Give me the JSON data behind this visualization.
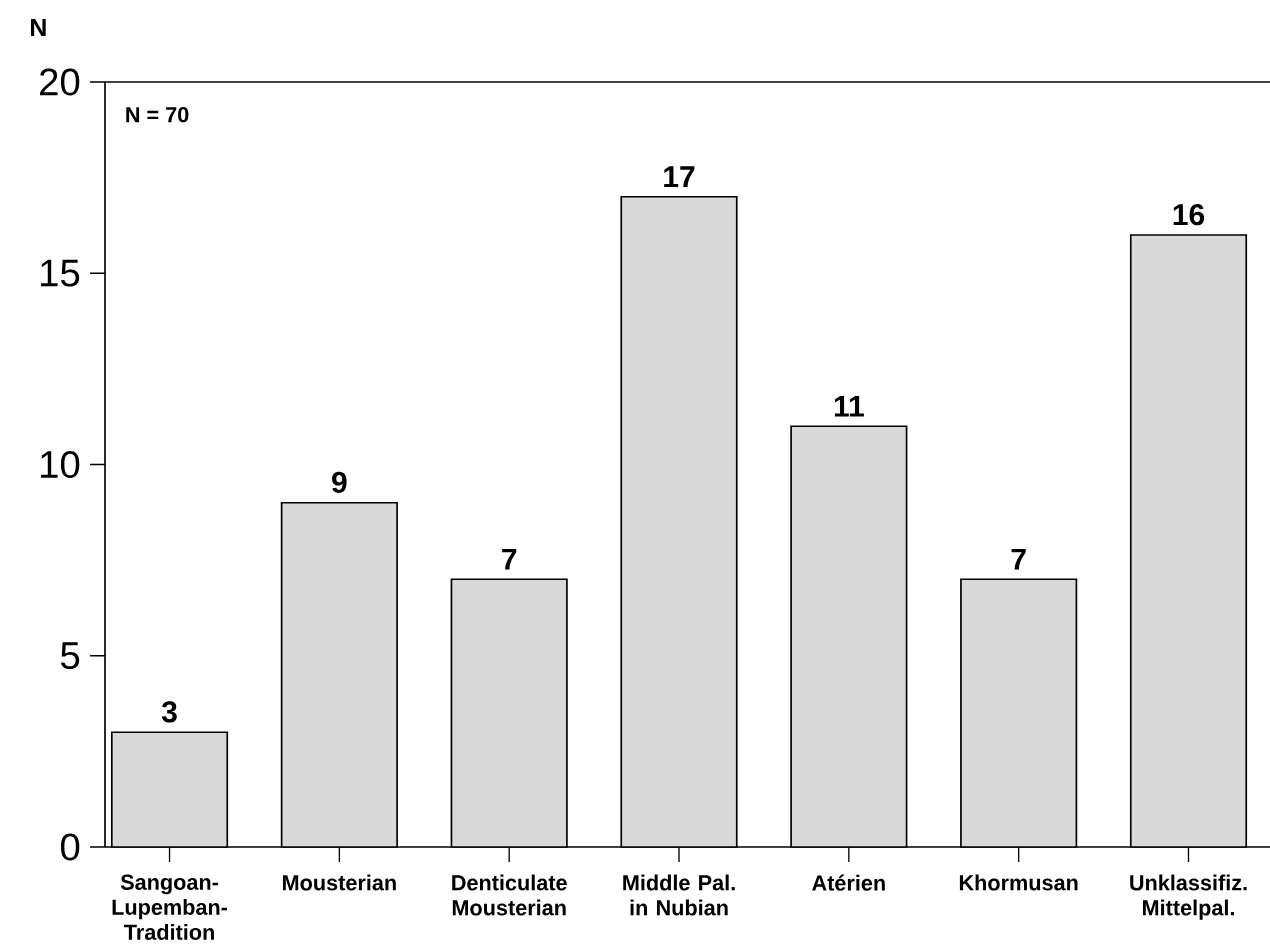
{
  "chart_data": {
    "type": "bar",
    "ylabel": "N",
    "annotations": [
      "N = 70"
    ],
    "categories": [
      "Sangoan-Lupemban-Tradition",
      "Mousterian",
      "Denticulate Mousterian",
      "Middle Pal. in Nubian",
      "Atérien",
      "Khormusan",
      "Unklassifiz. Mittelpal."
    ],
    "values": [
      3,
      9,
      7,
      17,
      11,
      7,
      16
    ],
    "color": "#d9d9d9",
    "ylim": [
      0,
      20
    ],
    "yticks": [
      0,
      5,
      10,
      15,
      20
    ],
    "data_labels": true
  }
}
